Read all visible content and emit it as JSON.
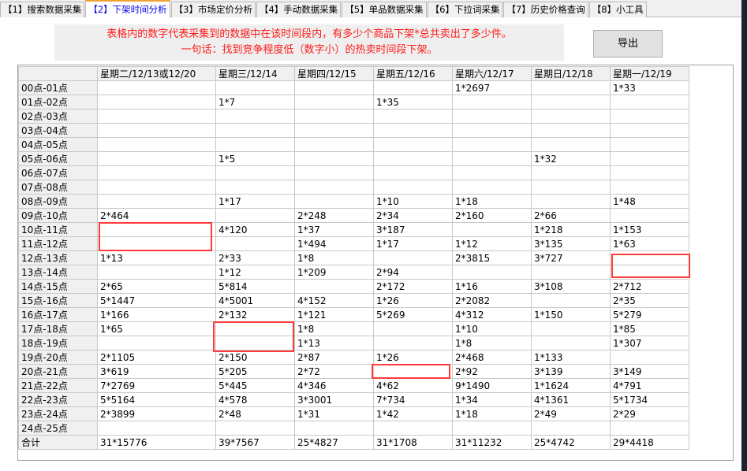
{
  "tabs": [
    "【1】搜索数据采集",
    "【2】下架时间分析",
    "【3】市场定价分析",
    "【4】手动数据采集",
    "【5】单品数据采集",
    "【6】下拉词采集",
    "【7】历史价格查询",
    "【8】小工具"
  ],
  "active_tab": 1,
  "notice": {
    "line1": "表格内的数字代表采集到的数据中在该时间段内，有多少个商品下架*总共卖出了多少件。",
    "line2": "一句话：找到竞争程度低（数字小）的热卖时间段下架。",
    "color": "#ff1a1a"
  },
  "export_button": "导出",
  "table": {
    "headers": [
      "",
      "星期二/12/13或12/20",
      "星期三/12/14",
      "星期四/12/15",
      "星期五/12/16",
      "星期六/12/17",
      "星期日/12/18",
      "星期一/12/19"
    ],
    "rows": [
      [
        "00点-01点",
        "",
        "",
        "",
        "",
        "1*2697",
        "",
        "1*33"
      ],
      [
        "01点-02点",
        "",
        "1*7",
        "",
        "1*35",
        "",
        "",
        ""
      ],
      [
        "02点-03点",
        "",
        "",
        "",
        "",
        "",
        "",
        ""
      ],
      [
        "03点-04点",
        "",
        "",
        "",
        "",
        "",
        "",
        ""
      ],
      [
        "04点-05点",
        "",
        "",
        "",
        "",
        "",
        "",
        ""
      ],
      [
        "05点-06点",
        "",
        "1*5",
        "",
        "",
        "",
        "1*32",
        ""
      ],
      [
        "06点-07点",
        "",
        "",
        "",
        "",
        "",
        "",
        ""
      ],
      [
        "07点-08点",
        "",
        "",
        "",
        "",
        "",
        "",
        ""
      ],
      [
        "08点-09点",
        "",
        "1*17",
        "",
        "1*10",
        "1*18",
        "",
        "1*48"
      ],
      [
        "09点-10点",
        "2*464",
        "",
        "2*248",
        "2*34",
        "2*160",
        "2*66",
        ""
      ],
      [
        "10点-11点",
        "",
        "4*120",
        "1*37",
        "3*187",
        "",
        "1*218",
        "1*153"
      ],
      [
        "11点-12点",
        "",
        "",
        "1*494",
        "1*17",
        "1*12",
        "3*135",
        "1*63"
      ],
      [
        "12点-13点",
        "1*13",
        "2*33",
        "1*8",
        "",
        "2*3815",
        "3*727",
        ""
      ],
      [
        "13点-14点",
        "",
        "1*12",
        "1*209",
        "2*94",
        "",
        "",
        ""
      ],
      [
        "14点-15点",
        "2*65",
        "5*814",
        "",
        "2*172",
        "1*16",
        "3*108",
        "2*712"
      ],
      [
        "15点-16点",
        "5*1447",
        "4*5001",
        "4*152",
        "1*26",
        "2*2082",
        "",
        "2*35"
      ],
      [
        "16点-17点",
        "1*166",
        "2*132",
        "1*121",
        "5*269",
        "4*312",
        "1*150",
        "5*279"
      ],
      [
        "17点-18点",
        "1*65",
        "",
        "1*8",
        "",
        "1*10",
        "",
        "1*85"
      ],
      [
        "18点-19点",
        "",
        "",
        "1*13",
        "",
        "1*8",
        "",
        "1*307"
      ],
      [
        "19点-20点",
        "2*1105",
        "2*150",
        "2*87",
        "1*26",
        "2*468",
        "1*133",
        ""
      ],
      [
        "20点-21点",
        "3*619",
        "5*205",
        "2*72",
        "",
        "2*92",
        "3*139",
        "3*149"
      ],
      [
        "21点-22点",
        "7*2769",
        "5*445",
        "4*346",
        "4*62",
        "9*1490",
        "1*1624",
        "4*791"
      ],
      [
        "22点-23点",
        "5*5164",
        "4*578",
        "3*3001",
        "7*734",
        "1*34",
        "4*1361",
        "5*1734"
      ],
      [
        "23点-24点",
        "2*3899",
        "2*48",
        "1*31",
        "1*42",
        "1*18",
        "2*49",
        "2*29"
      ],
      [
        "24点-25点",
        "",
        "",
        "",
        "",
        "",
        "",
        ""
      ],
      [
        "合计",
        "31*15776",
        "39*7567",
        "25*4827",
        "31*1708",
        "31*11232",
        "25*4742",
        "29*4418"
      ]
    ]
  },
  "highlight_color": "#ff3b3b"
}
